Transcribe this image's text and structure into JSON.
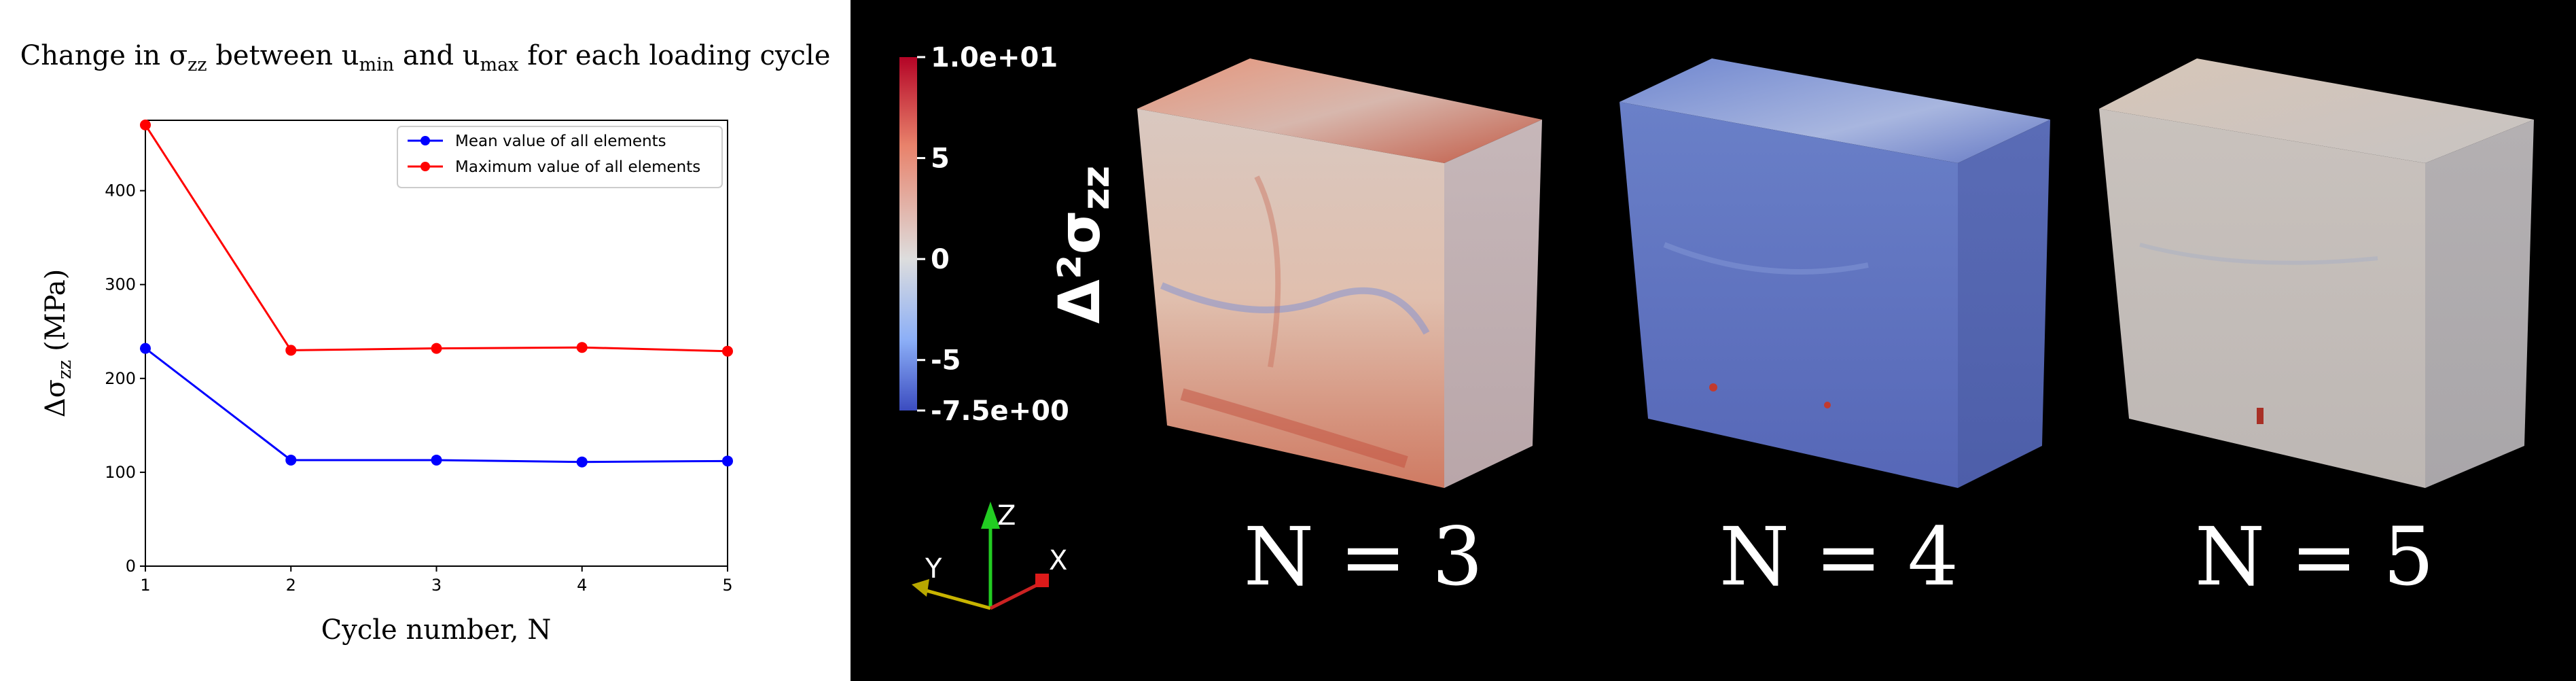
{
  "chart_data": [
    {
      "type": "line",
      "title": "Change in σzz between umin and umax for each loading cycle",
      "title_parts": [
        "Change in σ",
        "zz",
        " between u",
        "min",
        " and u",
        "max",
        " for each loading cycle"
      ],
      "xlabel": "Cycle number, N",
      "ylabel": "Δσzz (MPa)",
      "ylabel_parts": [
        "Δσ",
        "zz",
        " (MPa)"
      ],
      "x": [
        1,
        2,
        3,
        4,
        5
      ],
      "xticks": [
        "1",
        "2",
        "3",
        "4",
        "5"
      ],
      "yticks": [
        "0",
        "100",
        "200",
        "300",
        "400"
      ],
      "ytick_values": [
        0,
        100,
        200,
        300,
        400
      ],
      "xlim": [
        1,
        5
      ],
      "ylim": [
        0,
        475
      ],
      "grid": false,
      "legend_position": "top-right",
      "series": [
        {
          "name": "Mean value of all elements",
          "color": "#0000ff",
          "values": [
            232,
            113,
            113,
            111,
            112
          ]
        },
        {
          "name": "Maximum value of all elements",
          "color": "#ff0000",
          "values": [
            470,
            230,
            232,
            233,
            229
          ]
        }
      ]
    },
    {
      "type": "heatmap",
      "colorbar": {
        "title": "Δ²σzz",
        "min_label": "-7.5e+00",
        "max_label": "1.0e+01",
        "min": -7.5,
        "max": 10,
        "ticks": [
          "5",
          "0",
          "-5"
        ],
        "tick_values": [
          5,
          0,
          -5
        ],
        "colors": [
          "#3b4cc0",
          "#dddddd",
          "#b40426"
        ]
      },
      "axes_labels": [
        "Z",
        "Y",
        "X"
      ],
      "panels": [
        "N = 3",
        "N = 4",
        "N = 5"
      ]
    }
  ]
}
